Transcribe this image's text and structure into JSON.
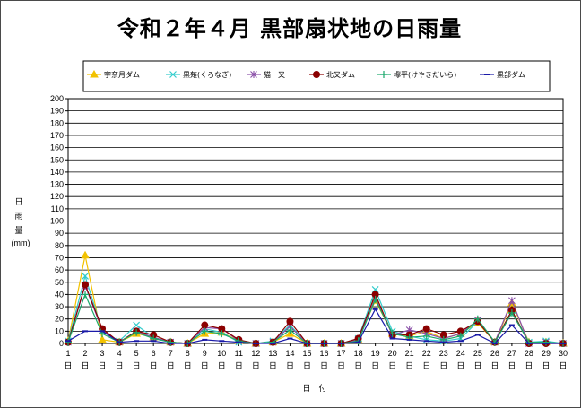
{
  "chart_data": {
    "type": "line",
    "title": "令和２年４月 黒部扇状地の日雨量",
    "ylabel_lines": [
      "日",
      "雨",
      "量"
    ],
    "yunit": "(mm)",
    "xlabel": "日　付",
    "x_day_suffix": "日",
    "ylim": [
      0,
      200
    ],
    "ytick_step": 10,
    "grid": true,
    "legend_position": "top",
    "categories": [
      1,
      2,
      3,
      4,
      5,
      6,
      7,
      8,
      9,
      10,
      11,
      12,
      13,
      14,
      15,
      16,
      17,
      18,
      19,
      20,
      21,
      22,
      23,
      24,
      25,
      26,
      27,
      28,
      29,
      30
    ],
    "series": [
      {
        "name": "宇奈月ダム",
        "color": "#f2c200",
        "marker": "triangle",
        "values": [
          2,
          72,
          3,
          1,
          8,
          5,
          1,
          0,
          8,
          9,
          2,
          0,
          1,
          8,
          0,
          0,
          0,
          3,
          35,
          8,
          6,
          10,
          4,
          8,
          17,
          1,
          33,
          1,
          1,
          0
        ]
      },
      {
        "name": "黒薙(くろなぎ)",
        "color": "#33cccc",
        "marker": "x",
        "values": [
          2,
          55,
          10,
          2,
          15,
          5,
          1,
          0,
          12,
          9,
          1,
          0,
          2,
          15,
          0,
          0,
          0,
          4,
          44,
          10,
          6,
          3,
          2,
          4,
          18,
          1,
          27,
          1,
          2,
          0
        ]
      },
      {
        "name": "猫　又",
        "color": "#8a4fa8",
        "marker": "star",
        "values": [
          1,
          47,
          11,
          1,
          10,
          5,
          1,
          0,
          13,
          12,
          2,
          0,
          1,
          14,
          0,
          0,
          0,
          3,
          37,
          7,
          11,
          8,
          4,
          8,
          19,
          1,
          35,
          0,
          1,
          0
        ]
      },
      {
        "name": "北又ダム",
        "color": "#8b0000",
        "marker": "circle",
        "values": [
          1,
          48,
          12,
          1,
          10,
          7,
          1,
          0,
          15,
          12,
          3,
          0,
          1,
          18,
          0,
          0,
          0,
          4,
          40,
          7,
          7,
          12,
          7,
          10,
          18,
          1,
          27,
          0,
          0,
          0
        ]
      },
      {
        "name": "欅平(けやきだいら)",
        "color": "#1aa86b",
        "marker": "plus",
        "values": [
          1,
          40,
          8,
          1,
          9,
          4,
          1,
          0,
          10,
          8,
          2,
          0,
          1,
          11,
          0,
          0,
          0,
          2,
          36,
          8,
          5,
          6,
          3,
          6,
          20,
          1,
          25,
          1,
          1,
          0
        ]
      },
      {
        "name": "黒部ダム",
        "color": "#1a1aa8",
        "marker": "dash",
        "values": [
          2,
          10,
          10,
          1,
          2,
          2,
          0,
          0,
          3,
          2,
          1,
          0,
          0,
          4,
          0,
          0,
          0,
          1,
          28,
          4,
          3,
          2,
          1,
          2,
          7,
          0,
          15,
          0,
          0,
          0
        ]
      }
    ]
  }
}
